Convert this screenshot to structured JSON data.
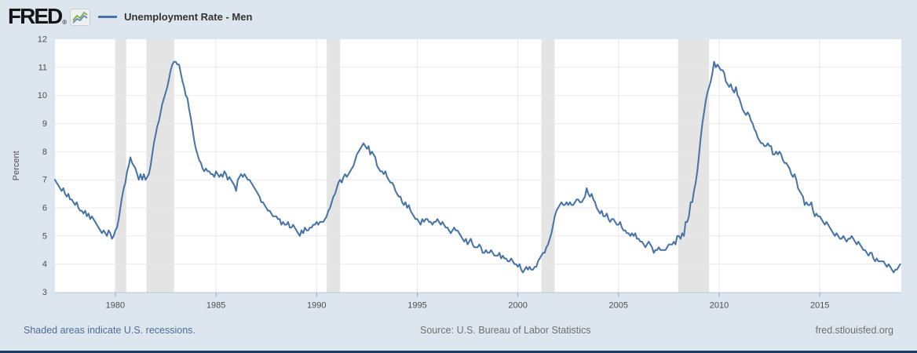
{
  "header": {
    "logo_text": "FRED",
    "registered": "®",
    "legend_label": "Unemployment Rate - Men"
  },
  "footer": {
    "recession_note": "Shaded areas indicate U.S. recessions.",
    "source": "Source: U.S. Bureau of Labor Statistics",
    "site": "fred.stlouisfed.org"
  },
  "colors": {
    "line": "#4572a7",
    "background": "#dde6ef",
    "plot_background": "#ffffff",
    "recession_band": "#e4e4e4",
    "gridline": "#e9e9e9",
    "axis_line": "#b9c7d8",
    "tick": "#8ea7c2",
    "tick_label": "#4d4d4d",
    "title_text": "#333333",
    "link": "#4d6d94",
    "source_text": "#707070",
    "bottom_bar": "#1d3c61"
  },
  "chart_data": {
    "type": "line",
    "title": "Unemployment Rate - Men",
    "ylabel": "Percent",
    "xlabel": "",
    "ylim": [
      3,
      12
    ],
    "yticks": [
      3,
      4,
      5,
      6,
      7,
      8,
      9,
      10,
      11,
      12
    ],
    "xlim": [
      1977.0,
      2019.05
    ],
    "xticks": [
      1980,
      1985,
      1990,
      1995,
      2000,
      2005,
      2010,
      2015
    ],
    "grid": true,
    "legend_position": "top-header",
    "recessions": [
      [
        1980.0,
        1980.54
      ],
      [
        1981.54,
        1982.92
      ],
      [
        1990.5,
        1991.17
      ],
      [
        2001.17,
        2001.83
      ],
      [
        2007.96,
        2009.5
      ]
    ],
    "series": [
      {
        "name": "Unemployment Rate - Men",
        "color": "#4572a7",
        "frequency": "monthly",
        "start_year": 1977,
        "values": [
          7.0,
          6.9,
          6.8,
          6.7,
          6.6,
          6.7,
          6.5,
          6.4,
          6.5,
          6.3,
          6.3,
          6.2,
          6.1,
          6.2,
          6.0,
          5.9,
          5.9,
          5.8,
          5.9,
          5.7,
          5.8,
          5.6,
          5.7,
          5.6,
          5.5,
          5.4,
          5.3,
          5.2,
          5.1,
          5.2,
          5.1,
          5.0,
          5.2,
          5.1,
          4.9,
          5.0,
          5.2,
          5.3,
          5.6,
          6.0,
          6.4,
          6.7,
          6.9,
          7.3,
          7.5,
          7.8,
          7.6,
          7.5,
          7.4,
          7.2,
          7.0,
          7.2,
          7.0,
          7.2,
          7.0,
          7.1,
          7.2,
          7.5,
          7.9,
          8.3,
          8.6,
          8.9,
          9.1,
          9.4,
          9.7,
          9.9,
          10.1,
          10.3,
          10.6,
          10.9,
          11.1,
          11.2,
          11.2,
          11.1,
          11.1,
          10.8,
          10.5,
          10.3,
          10.0,
          9.9,
          9.5,
          9.2,
          8.8,
          8.4,
          8.1,
          7.9,
          7.7,
          7.6,
          7.4,
          7.3,
          7.4,
          7.3,
          7.3,
          7.2,
          7.2,
          7.1,
          7.3,
          7.2,
          7.1,
          7.2,
          7.1,
          7.3,
          7.2,
          7.0,
          7.1,
          7.0,
          6.9,
          6.8,
          6.6,
          7.0,
          7.1,
          7.2,
          7.1,
          7.2,
          7.1,
          7.0,
          7.0,
          6.9,
          6.8,
          6.7,
          6.6,
          6.5,
          6.4,
          6.2,
          6.2,
          6.1,
          6.0,
          5.9,
          5.9,
          5.8,
          5.7,
          5.7,
          5.7,
          5.6,
          5.6,
          5.4,
          5.5,
          5.4,
          5.4,
          5.5,
          5.3,
          5.3,
          5.4,
          5.3,
          5.2,
          5.1,
          5.0,
          5.2,
          5.1,
          5.3,
          5.2,
          5.2,
          5.3,
          5.3,
          5.4,
          5.4,
          5.5,
          5.4,
          5.5,
          5.5,
          5.5,
          5.6,
          5.7,
          5.9,
          6.0,
          6.2,
          6.4,
          6.5,
          6.7,
          6.9,
          7.0,
          6.9,
          7.1,
          7.2,
          7.1,
          7.2,
          7.3,
          7.4,
          7.5,
          7.7,
          7.9,
          8.0,
          8.1,
          8.2,
          8.3,
          8.2,
          8.1,
          8.2,
          7.9,
          8.0,
          7.9,
          7.8,
          7.5,
          7.4,
          7.3,
          7.3,
          7.2,
          7.3,
          7.1,
          7.0,
          6.9,
          6.9,
          6.8,
          6.6,
          6.5,
          6.4,
          6.4,
          6.2,
          6.1,
          6.2,
          6.0,
          6.1,
          5.9,
          5.8,
          5.7,
          5.6,
          5.6,
          5.5,
          5.4,
          5.6,
          5.5,
          5.6,
          5.6,
          5.5,
          5.5,
          5.4,
          5.5,
          5.5,
          5.6,
          5.5,
          5.4,
          5.5,
          5.4,
          5.3,
          5.3,
          5.2,
          5.1,
          5.2,
          5.3,
          5.2,
          5.2,
          5.1,
          5.0,
          4.9,
          4.8,
          4.9,
          4.7,
          4.8,
          4.9,
          4.7,
          4.6,
          4.6,
          4.6,
          4.7,
          4.6,
          4.4,
          4.4,
          4.5,
          4.4,
          4.4,
          4.5,
          4.4,
          4.3,
          4.3,
          4.3,
          4.4,
          4.2,
          4.3,
          4.2,
          4.2,
          4.1,
          4.1,
          4.2,
          4.1,
          4.0,
          4.0,
          3.9,
          4.0,
          3.8,
          3.7,
          3.8,
          3.9,
          3.8,
          3.9,
          3.8,
          3.8,
          3.9,
          3.9,
          4.1,
          4.2,
          4.3,
          4.4,
          4.4,
          4.6,
          4.7,
          4.9,
          5.1,
          5.4,
          5.7,
          5.9,
          6.0,
          6.1,
          6.2,
          6.1,
          6.1,
          6.2,
          6.1,
          6.2,
          6.1,
          6.1,
          6.2,
          6.3,
          6.3,
          6.2,
          6.2,
          6.3,
          6.4,
          6.7,
          6.5,
          6.4,
          6.5,
          6.3,
          6.2,
          6.0,
          5.9,
          5.8,
          5.9,
          5.7,
          5.7,
          5.8,
          5.6,
          5.5,
          5.6,
          5.6,
          5.5,
          5.4,
          5.4,
          5.5,
          5.3,
          5.2,
          5.2,
          5.1,
          5.1,
          5.0,
          5.1,
          5.0,
          5.1,
          4.9,
          4.9,
          4.8,
          4.8,
          4.7,
          4.6,
          4.7,
          4.8,
          4.7,
          4.6,
          4.4,
          4.5,
          4.5,
          4.6,
          4.5,
          4.5,
          4.5,
          4.5,
          4.6,
          4.7,
          4.7,
          4.7,
          4.8,
          4.7,
          5.0,
          5.0,
          4.9,
          5.1,
          5.0,
          5.5,
          5.5,
          5.7,
          6.2,
          6.2,
          6.6,
          6.9,
          7.3,
          7.9,
          8.5,
          9.0,
          9.4,
          9.8,
          10.1,
          10.3,
          10.5,
          10.8,
          11.2,
          11.0,
          11.1,
          11.0,
          10.9,
          10.9,
          10.8,
          10.5,
          10.4,
          10.3,
          10.4,
          10.2,
          10.1,
          10.3,
          10.0,
          9.9,
          9.7,
          9.5,
          9.4,
          9.3,
          9.4,
          9.3,
          9.1,
          9.0,
          8.8,
          8.7,
          8.5,
          8.4,
          8.3,
          8.3,
          8.2,
          8.2,
          8.3,
          8.2,
          8.2,
          7.9,
          7.9,
          8.0,
          7.9,
          8.0,
          7.9,
          7.7,
          7.6,
          7.6,
          7.5,
          7.4,
          7.2,
          7.1,
          7.2,
          7.0,
          6.7,
          6.6,
          6.5,
          6.4,
          6.1,
          6.2,
          6.1,
          6.1,
          6.2,
          5.9,
          5.7,
          5.8,
          5.7,
          5.7,
          5.6,
          5.5,
          5.4,
          5.5,
          5.4,
          5.3,
          5.2,
          5.1,
          5.0,
          5.1,
          5.0,
          4.9,
          4.9,
          5.0,
          4.9,
          4.8,
          4.9,
          4.9,
          5.0,
          4.9,
          4.8,
          4.7,
          4.8,
          4.7,
          4.6,
          4.5,
          4.5,
          4.4,
          4.3,
          4.4,
          4.4,
          4.2,
          4.1,
          4.2,
          4.1,
          4.1,
          4.1,
          4.1,
          4.0,
          3.9,
          4.0,
          3.9,
          3.8,
          3.7,
          3.8,
          3.8,
          3.9,
          4.0
        ]
      }
    ]
  }
}
